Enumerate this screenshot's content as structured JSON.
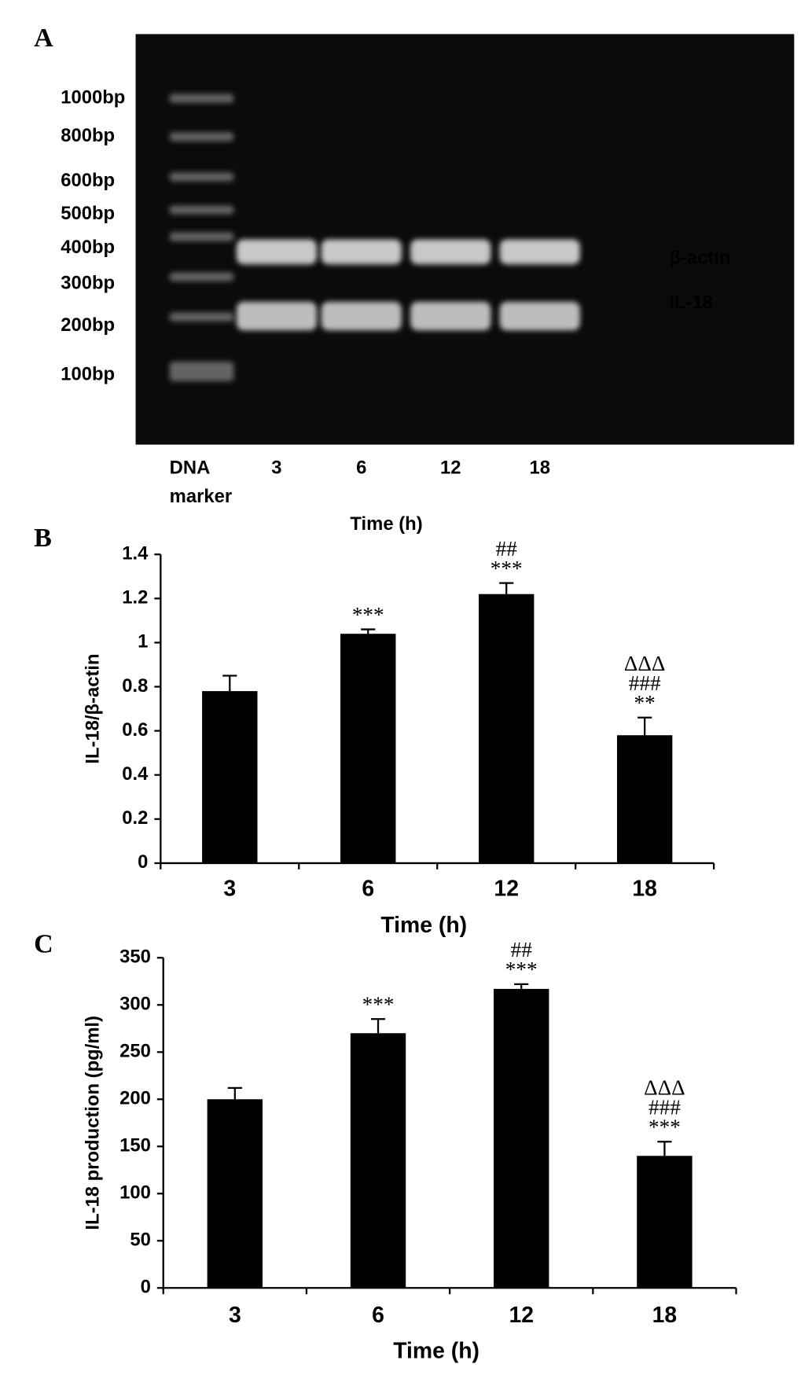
{
  "panels": [
    "A",
    "B",
    "C"
  ],
  "gel": {
    "markers": [
      "1000bp",
      "800bp",
      "600bp",
      "500bp",
      "400bp",
      "300bp",
      "200bp",
      "100bp"
    ],
    "bands": [
      "β-actin",
      "IL-18"
    ],
    "marker_label": [
      "DNA",
      "marker"
    ],
    "lanes": [
      "3",
      "6",
      "12",
      "18"
    ],
    "xlabel": "Time (h)"
  },
  "chart_data": [
    {
      "type": "bar",
      "categories": [
        "3",
        "6",
        "12",
        "18"
      ],
      "values": [
        0.78,
        1.04,
        1.22,
        0.58
      ],
      "errors": [
        0.07,
        0.02,
        0.05,
        0.08
      ],
      "color": "#000000",
      "annotations": [
        [],
        [
          "***"
        ],
        [
          "##",
          "***"
        ],
        [
          "ΔΔΔ",
          "###",
          "**"
        ]
      ],
      "ylim": [
        0,
        1.4
      ],
      "yticks": [
        0,
        0.2,
        0.4,
        0.6,
        0.8,
        1,
        1.2,
        1.4
      ],
      "xlabel": "Time (h)",
      "ylabel": "IL-18/β-actin"
    },
    {
      "type": "bar",
      "categories": [
        "3",
        "6",
        "12",
        "18"
      ],
      "values": [
        200,
        270,
        317,
        140
      ],
      "errors": [
        12,
        15,
        5,
        15
      ],
      "color": "#000000",
      "annotations": [
        [],
        [
          "***"
        ],
        [
          "##",
          "***"
        ],
        [
          "ΔΔΔ",
          "###",
          "***"
        ]
      ],
      "ylim": [
        0,
        350
      ],
      "yticks": [
        0,
        50,
        100,
        150,
        200,
        250,
        300,
        350
      ],
      "xlabel": "Time (h)",
      "ylabel": "IL-18 production (pg/ml)"
    }
  ]
}
